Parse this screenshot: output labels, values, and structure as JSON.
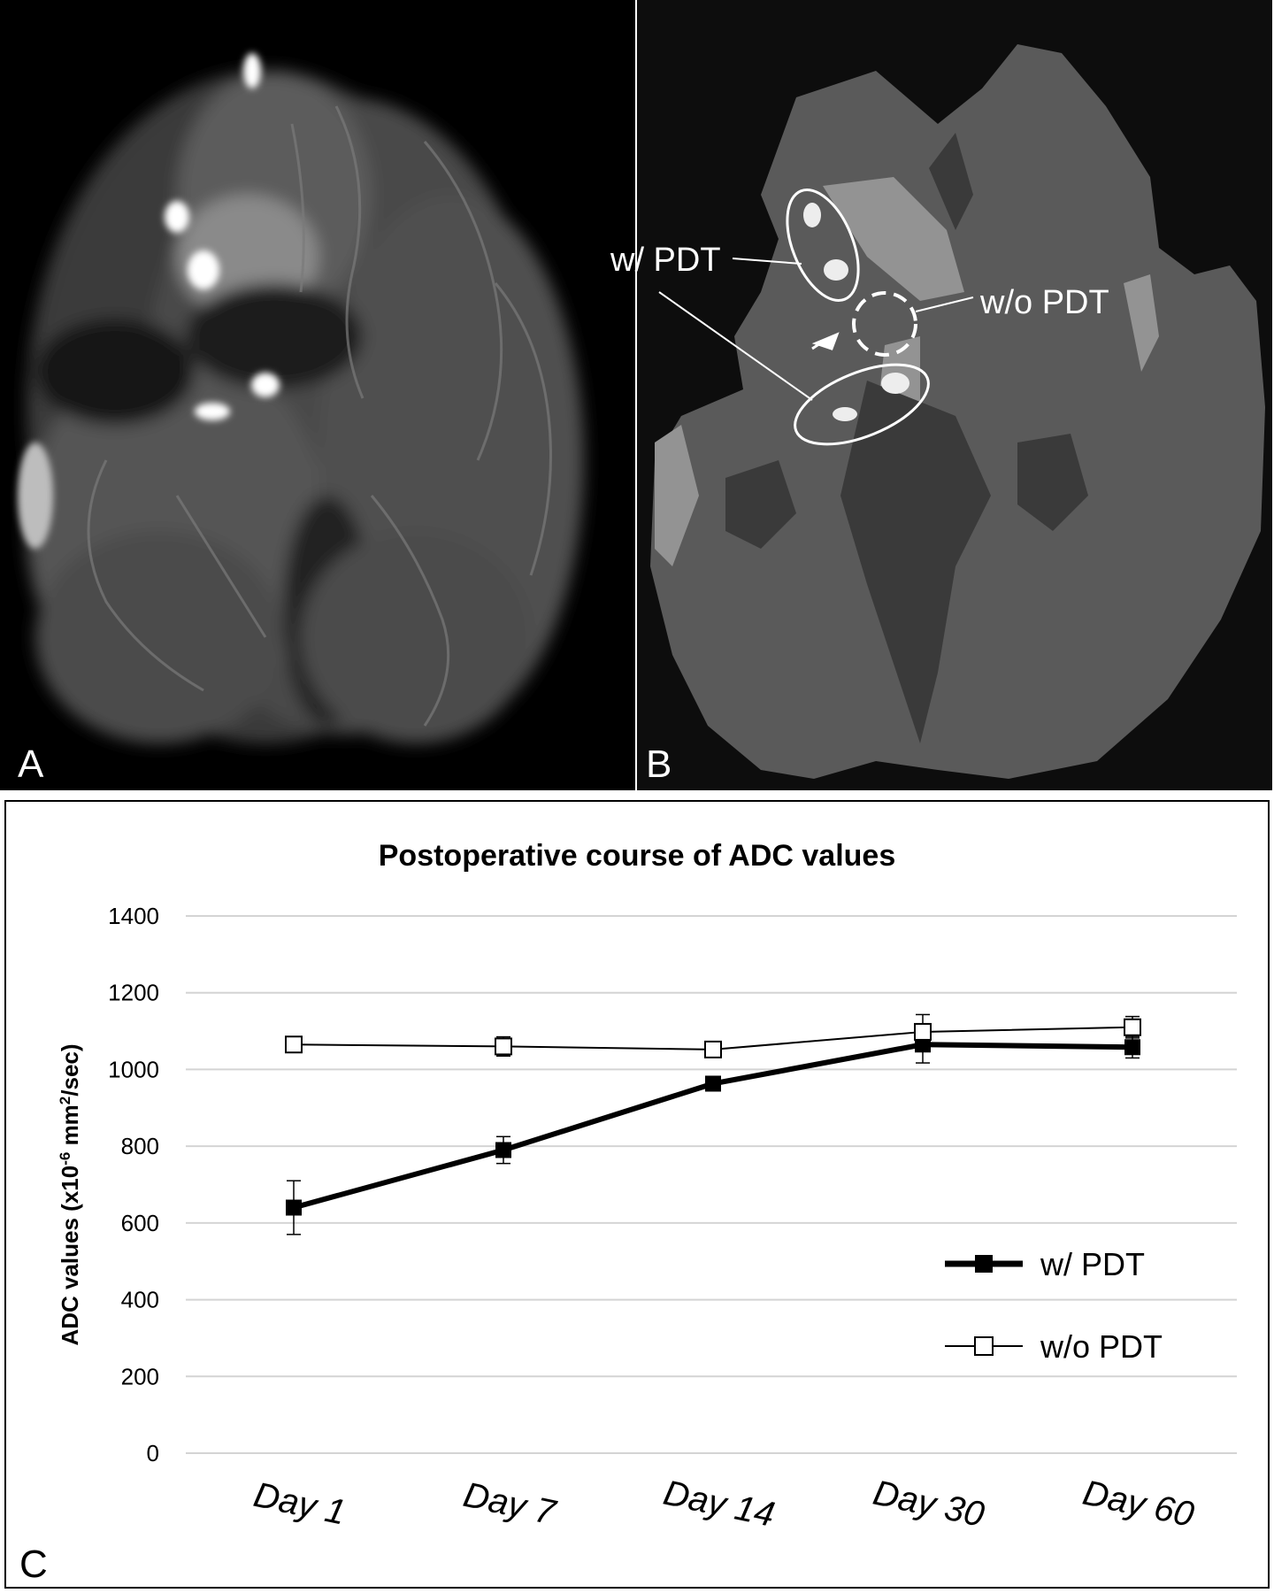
{
  "panels": {
    "a": {
      "letter": "A"
    },
    "b": {
      "letter": "B",
      "label_with_pdt": "w/ PDT",
      "label_without_pdt": "w/o PDT"
    },
    "c": {
      "letter": "C"
    }
  },
  "colors": {
    "frame": "#000000",
    "brain_dark_bg": "#0d0d0d",
    "segmentation_gray": "#5a5a5a",
    "chart_line": "#000000",
    "gridline": "#d4d4d4"
  },
  "chart_data": {
    "type": "line",
    "title": "Postoperative course of ADC values",
    "xlabel": "",
    "ylabel_prefix": "ADC values (x10",
    "ylabel_exp": "-6",
    "ylabel_mid": " mm",
    "ylabel_exp2": "2",
    "ylabel_suffix": "/sec)",
    "categories": [
      "Day 1",
      "Day 7",
      "Day 14",
      "Day 30",
      "Day 60"
    ],
    "ylim": [
      0,
      1400
    ],
    "yticks": [
      "0",
      "200",
      "400",
      "600",
      "800",
      "1000",
      "1200",
      "1400"
    ],
    "grid": true,
    "legend_position": "bottom-right",
    "series": [
      {
        "name": "w/ PDT",
        "marker": "filled-square",
        "line": "thick",
        "values": [
          640,
          790,
          963,
          1065,
          1058
        ],
        "error": [
          70,
          35,
          12,
          48,
          28
        ]
      },
      {
        "name": "w/o PDT",
        "marker": "open-square",
        "line": "thin",
        "values": [
          1065,
          1060,
          1052,
          1098,
          1110
        ],
        "error": [
          10,
          25,
          18,
          45,
          28
        ]
      }
    ]
  }
}
